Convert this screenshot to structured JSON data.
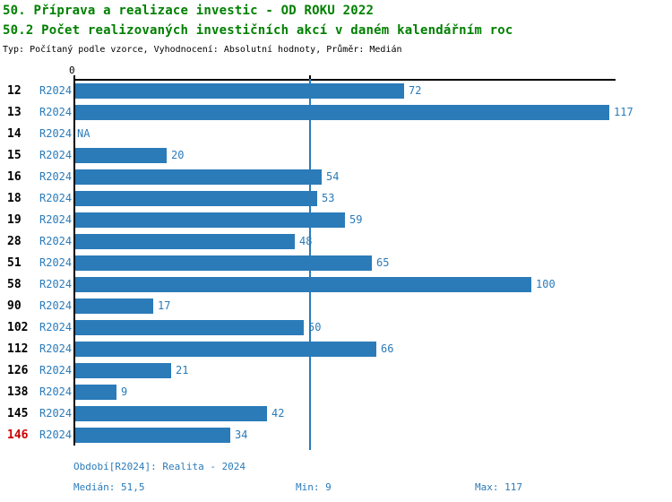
{
  "header": {
    "title1": "50. Příprava a realizace investic - OD ROKU 2022",
    "title2": "50.2 Počet realizovaných investičních akcí v daném kalendářním roc",
    "subtitle": "Typ: Počítaný podle vzorce, Vyhodnocení: Absolutní hodnoty, Průměr: Medián"
  },
  "chart_data": {
    "type": "bar",
    "orientation": "horizontal",
    "title": "50.2 Počet realizovaných investičních akcí v daném kalendářním roc",
    "axis_zero_label": "0",
    "series_label": "R2024",
    "categories": [
      "12",
      "13",
      "14",
      "15",
      "16",
      "18",
      "19",
      "28",
      "51",
      "58",
      "90",
      "102",
      "112",
      "126",
      "138",
      "145",
      "146"
    ],
    "values": [
      72,
      117,
      null,
      20,
      54,
      53,
      59,
      48,
      65,
      100,
      17,
      50,
      66,
      21,
      9,
      42,
      34
    ],
    "value_labels": [
      "72",
      "117",
      "NA",
      "20",
      "54",
      "53",
      "59",
      "48",
      "65",
      "100",
      "17",
      "50",
      "66",
      "21",
      "9",
      "42",
      "34"
    ],
    "highlighted_category": "146",
    "xlim": [
      0,
      117
    ],
    "median_line_value": 51.5,
    "grid": false,
    "legend_position": "none",
    "colors": {
      "bar": "#2b7bb9",
      "label_blue": "#2b7bb9",
      "median_line": "#2b7bb9",
      "highlight_red": "#cc0000",
      "title_green": "#008000",
      "axis_black": "#000000"
    }
  },
  "footer": {
    "period": "Období[R2024]: Realita - 2024",
    "median": "Medián: 51,5",
    "min": "Min: 9",
    "max": "Max: 117"
  }
}
